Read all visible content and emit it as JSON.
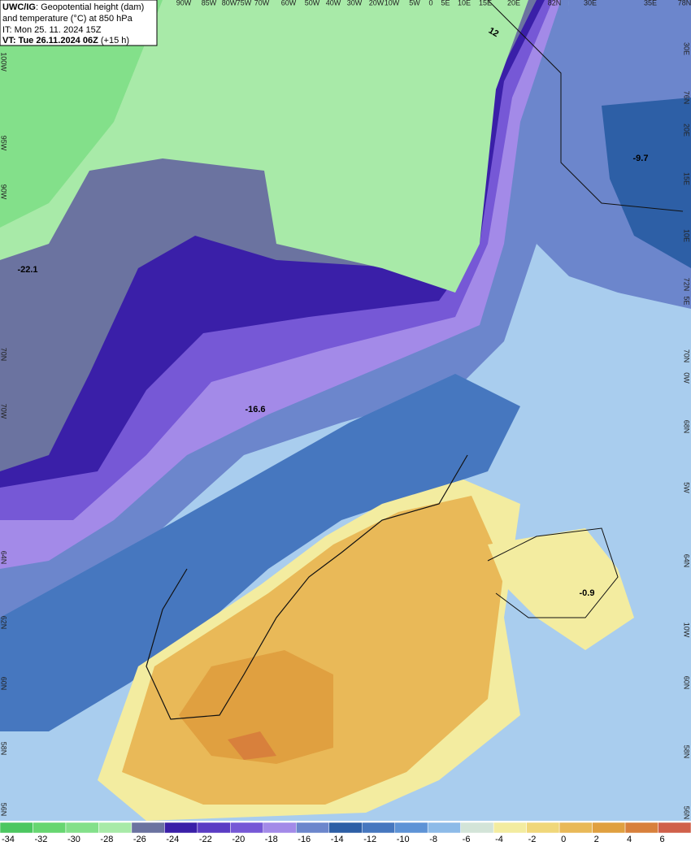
{
  "header": {
    "title_bold": "UWC/IG",
    "title_rest": ": Geopotential height (dam)",
    "line2": "and temperature (°C) at 850 hPa",
    "init": "IT: Mon 25. 11. 2024 15Z",
    "valid_bold": "VT: Tue 26.11.2024 06Z",
    "valid_rest": "(+15 h)"
  },
  "top_labels": [
    "90W",
    "85W",
    "80W",
    "75W",
    "70W",
    "60W",
    "50W",
    "40W",
    "30W",
    "20W",
    "10W",
    "5W",
    "0",
    "5E",
    "10E",
    "15E",
    "20E",
    "82N",
    "30E",
    "35E",
    "78N"
  ],
  "left_labels": [
    "100W",
    "95W",
    "90W",
    "70N",
    "70W",
    "64N",
    "62N",
    "60N",
    "58N",
    "56N"
  ],
  "right_labels": [
    "30E",
    "76N",
    "20E",
    "15E",
    "10E",
    "72N",
    "5E",
    "70N",
    "0W",
    "68N",
    "5W",
    "64N",
    "10W",
    "60N",
    "58N",
    "56N"
  ],
  "annotations": [
    "-22.1",
    "-16.6",
    "-9.7",
    "-0.9",
    "12"
  ],
  "colorbar": {
    "labels": [
      -34,
      -32,
      -30,
      -28,
      -26,
      -24,
      -22,
      -20,
      -18,
      -16,
      -14,
      -12,
      -10,
      -8,
      -6,
      -4,
      -2,
      0,
      2,
      4,
      6
    ],
    "colors": [
      "#4cc760",
      "#67d671",
      "#83e08a",
      "#a8eaa8",
      "#6b73a0",
      "#3a1fa8",
      "#5a3cc4",
      "#7658d6",
      "#a38ae8",
      "#6c86cc",
      "#2d5fa6",
      "#4677bf",
      "#5e93d6",
      "#8dbbe8",
      "#d3e4d8",
      "#f3eca0",
      "#f0d77a",
      "#e9b958",
      "#e0a040",
      "#d8803c",
      "#d0604a"
    ]
  }
}
